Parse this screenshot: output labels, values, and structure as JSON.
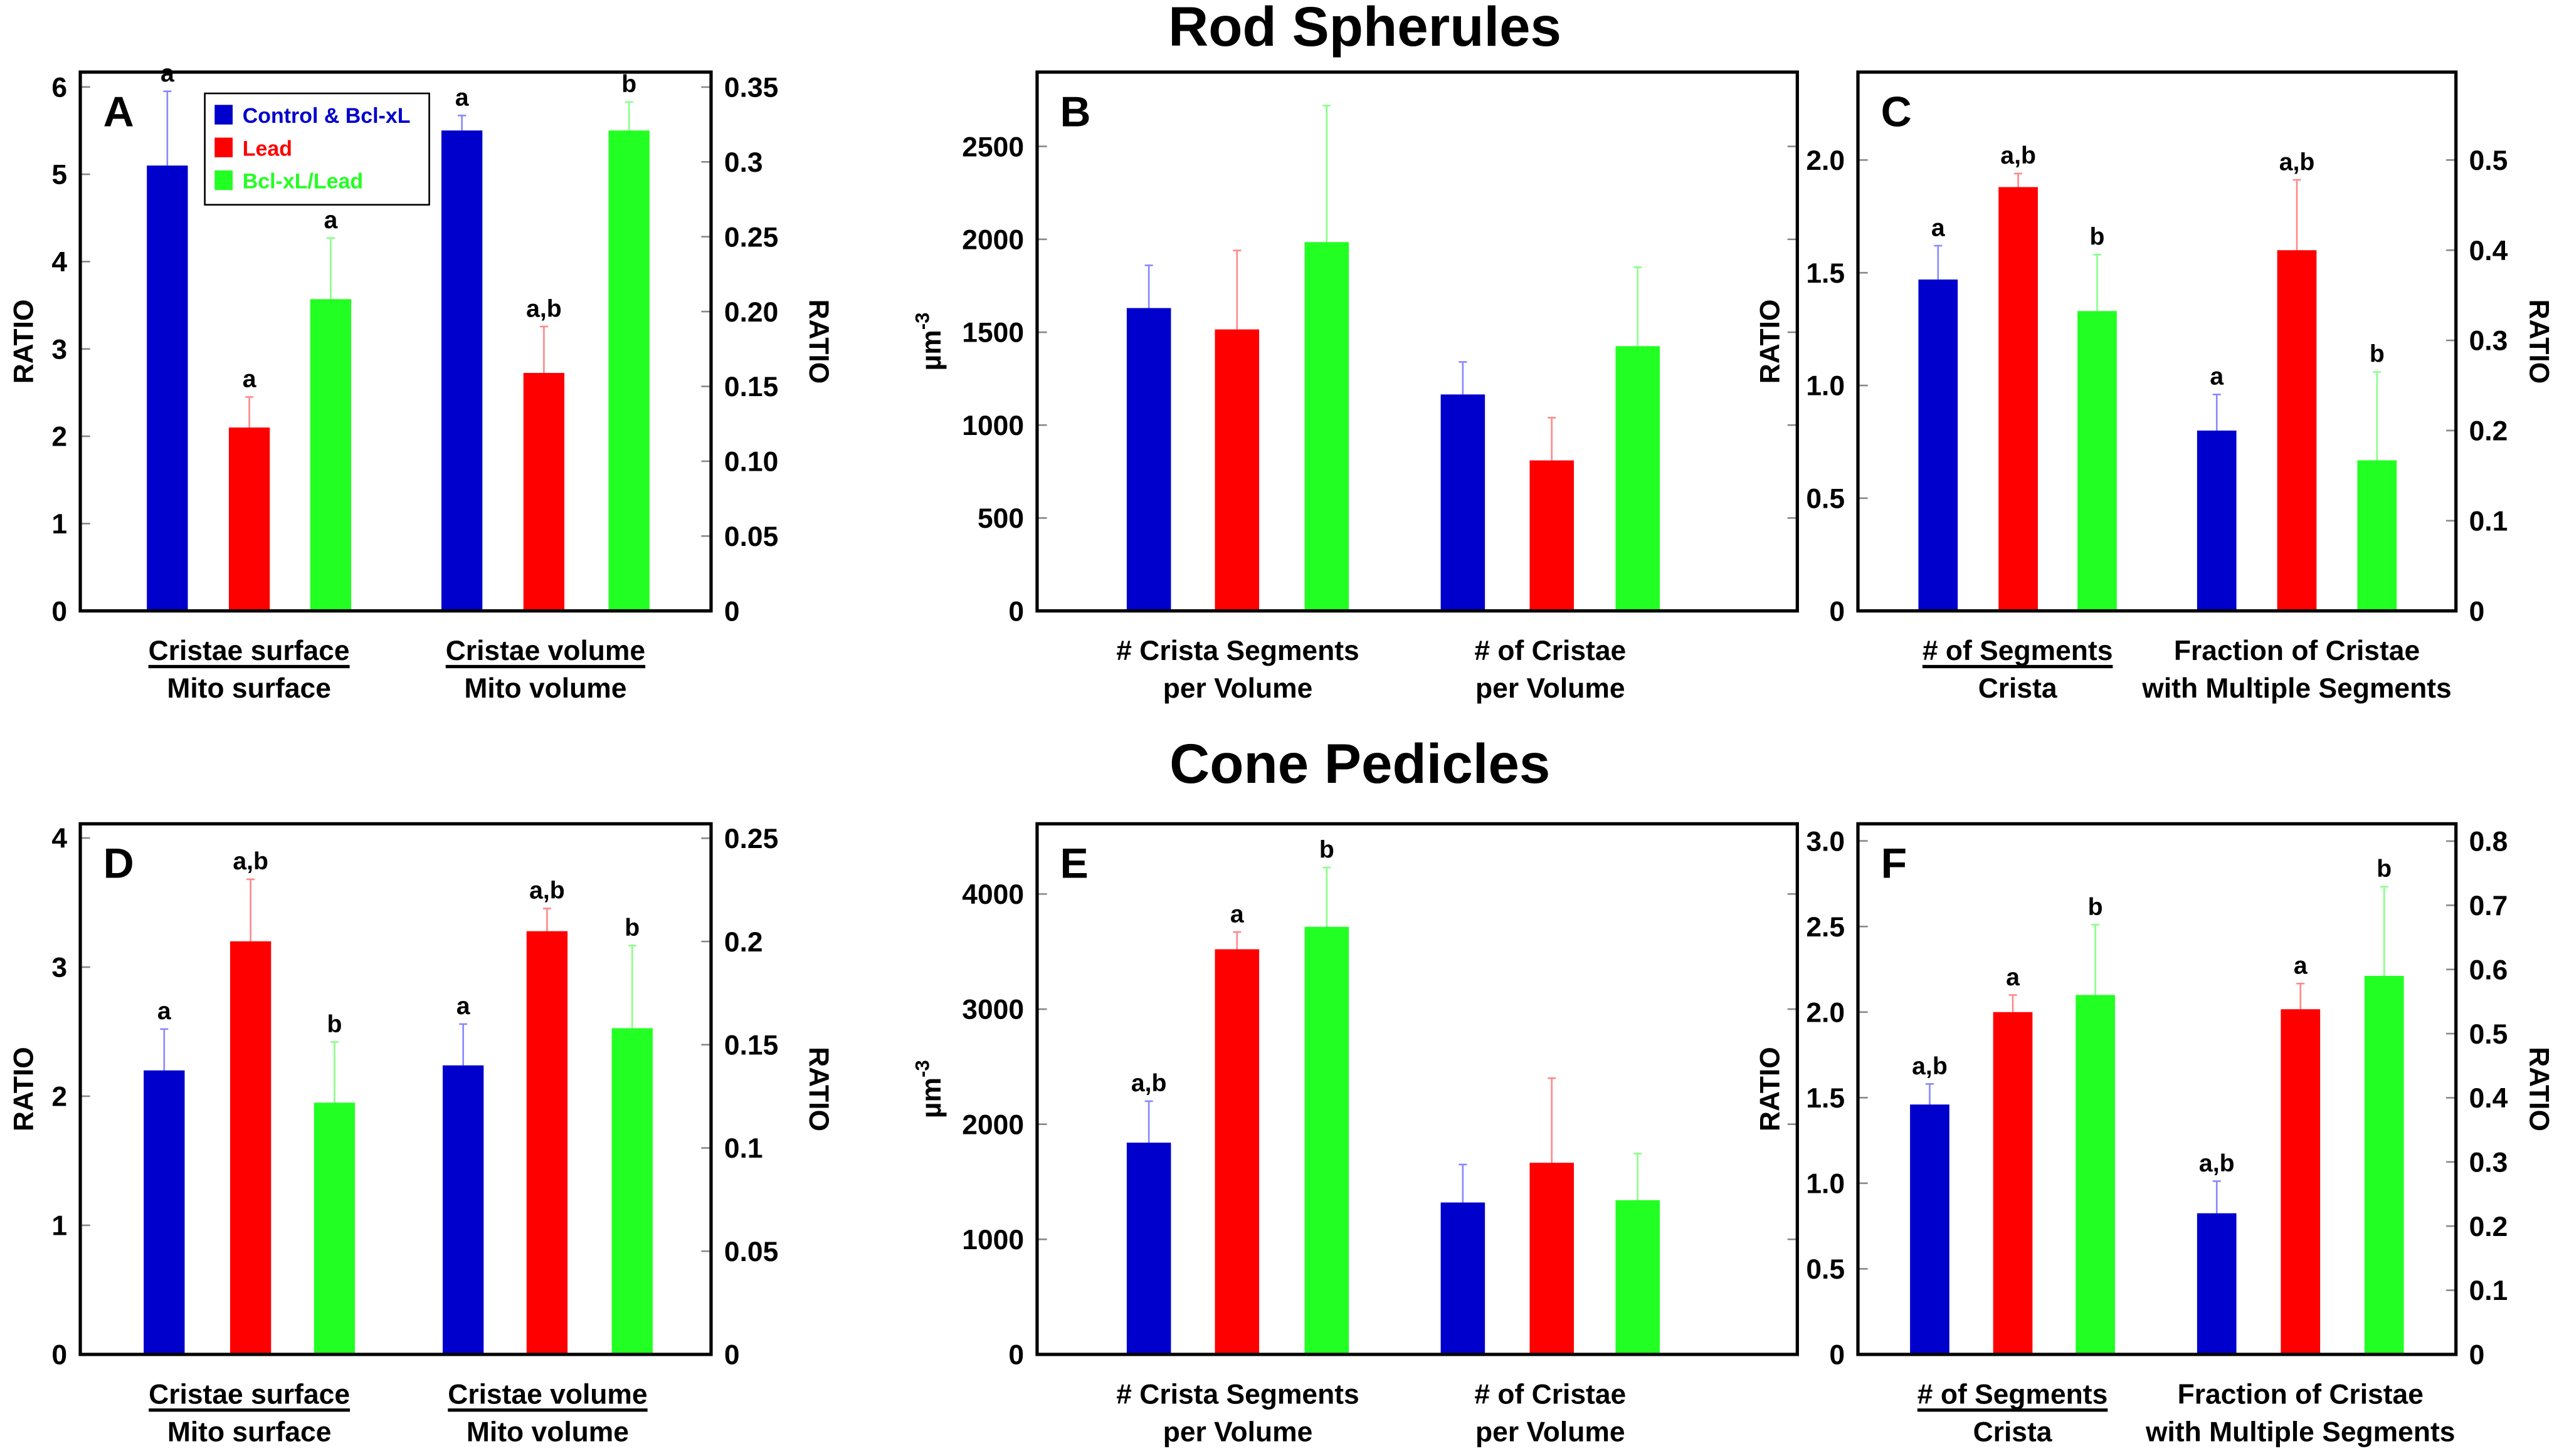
{
  "titles": [
    "Rod Spherules",
    "Cone Pedicles"
  ],
  "legend": [
    {
      "label": "Control & Bcl-xL",
      "color": "#0000cc"
    },
    {
      "label": "Lead",
      "color": "#ff0000"
    },
    {
      "label": "Bcl-xL/Lead",
      "color": "#22ff22"
    }
  ],
  "chart_data": [
    {
      "panel": "A",
      "type": "bar",
      "ylabel": "RATIO",
      "y2label": "RATIO",
      "ylim": [
        0,
        6.17
      ],
      "y2lim": [
        0,
        0.36
      ],
      "yticks": [
        {
          "v": 0,
          "t": "0"
        },
        {
          "v": 1,
          "t": "1"
        },
        {
          "v": 2,
          "t": "2"
        },
        {
          "v": 3,
          "t": "3"
        },
        {
          "v": 4,
          "t": "4"
        },
        {
          "v": 5,
          "t": "5"
        },
        {
          "v": 6,
          "t": "6"
        }
      ],
      "y2ticks": [
        {
          "v": 0,
          "t": "0"
        },
        {
          "v": 0.05,
          "t": "0.05"
        },
        {
          "v": 0.1,
          "t": "0.10"
        },
        {
          "v": 0.15,
          "t": "0.15"
        },
        {
          "v": 0.2,
          "t": "0.20"
        },
        {
          "v": 0.25,
          "t": "0.25"
        },
        {
          "v": 0.3,
          "t": "0.3"
        },
        {
          "v": 0.35,
          "t": "0.35"
        }
      ],
      "legend": "top-left",
      "groups": [
        {
          "label": [
            "Cristae surface",
            "Mito surface"
          ],
          "fraction": true,
          "axis": "left",
          "values": [
            5.1,
            2.1,
            3.57
          ],
          "errors": [
            0.85,
            0.35,
            0.7
          ],
          "letters": [
            "a",
            "a",
            "a"
          ]
        },
        {
          "label": [
            "Cristae volume",
            "Mito volume"
          ],
          "fraction": true,
          "axis": "right",
          "values": [
            0.321,
            0.159,
            0.321
          ],
          "errors": [
            0.01,
            0.031,
            0.019
          ],
          "letters": [
            "a",
            "a,b",
            "b"
          ]
        }
      ]
    },
    {
      "panel": "B",
      "type": "bar",
      "ylabel": "µm",
      "ylabel_sup": "-3",
      "y2label": "",
      "ylim": [
        0,
        2900
      ],
      "y2lim": [
        0,
        2900
      ],
      "yticks": [
        {
          "v": 0,
          "t": "0"
        },
        {
          "v": 500,
          "t": "500"
        },
        {
          "v": 1000,
          "t": "1000"
        },
        {
          "v": 1500,
          "t": "1500"
        },
        {
          "v": 2000,
          "t": "2000"
        },
        {
          "v": 2500,
          "t": "2500"
        }
      ],
      "y2ticks": [
        {
          "v": 0,
          "t": ""
        },
        {
          "v": 500,
          "t": ""
        },
        {
          "v": 1000,
          "t": ""
        },
        {
          "v": 1500,
          "t": ""
        },
        {
          "v": 2000,
          "t": ""
        },
        {
          "v": 2500,
          "t": ""
        }
      ],
      "groups": [
        {
          "label": [
            "# Crista  Segments",
            "per Volume"
          ],
          "fraction": false,
          "axis": "left",
          "values": [
            1630,
            1515,
            1985
          ],
          "errors": [
            230,
            425,
            735
          ],
          "letters": [
            "",
            "",
            ""
          ]
        },
        {
          "label": [
            "# of Cristae",
            "per Volume"
          ],
          "fraction": false,
          "axis": "left",
          "values": [
            1165,
            810,
            1425
          ],
          "errors": [
            175,
            230,
            425
          ],
          "letters": [
            "",
            "",
            ""
          ]
        }
      ]
    },
    {
      "panel": "C",
      "type": "bar",
      "ylabel": "RATIO",
      "y2label": "RATIO",
      "ylim": [
        0,
        2.39
      ],
      "y2lim": [
        0,
        0.5975
      ],
      "yticks": [
        {
          "v": 0,
          "t": "0"
        },
        {
          "v": 0.5,
          "t": "0.5"
        },
        {
          "v": 1.0,
          "t": "1.0"
        },
        {
          "v": 1.5,
          "t": "1.5"
        },
        {
          "v": 2.0,
          "t": "2.0"
        }
      ],
      "y2ticks": [
        {
          "v": 0,
          "t": "0"
        },
        {
          "v": 0.1,
          "t": "0.1"
        },
        {
          "v": 0.2,
          "t": "0.2"
        },
        {
          "v": 0.3,
          "t": "0.3"
        },
        {
          "v": 0.4,
          "t": "0.4"
        },
        {
          "v": 0.5,
          "t": "0.5"
        }
      ],
      "groups": [
        {
          "label": [
            "# of Segments",
            "Crista"
          ],
          "fraction": true,
          "axis": "left",
          "values": [
            1.47,
            1.88,
            1.33
          ],
          "errors": [
            0.15,
            0.06,
            0.25
          ],
          "letters": [
            "a",
            "a,b",
            "b"
          ]
        },
        {
          "label": [
            "Fraction of Cristae",
            "with Multiple Segments"
          ],
          "fraction": false,
          "axis": "right",
          "values": [
            0.2,
            0.4,
            0.167
          ],
          "errors": [
            0.04,
            0.078,
            0.098
          ],
          "letters": [
            "a",
            "a,b",
            "b"
          ]
        }
      ]
    },
    {
      "panel": "D",
      "type": "bar",
      "ylabel": "RATIO",
      "y2label": "RATIO",
      "ylim": [
        0,
        4.11
      ],
      "y2lim": [
        0,
        0.257
      ],
      "yticks": [
        {
          "v": 0,
          "t": "0"
        },
        {
          "v": 1,
          "t": "1"
        },
        {
          "v": 2,
          "t": "2"
        },
        {
          "v": 3,
          "t": "3"
        },
        {
          "v": 4,
          "t": "4"
        }
      ],
      "y2ticks": [
        {
          "v": 0,
          "t": "0"
        },
        {
          "v": 0.05,
          "t": "0.05"
        },
        {
          "v": 0.1,
          "t": "0.1"
        },
        {
          "v": 0.15,
          "t": "0.15"
        },
        {
          "v": 0.2,
          "t": "0.2"
        },
        {
          "v": 0.25,
          "t": "0.25"
        }
      ],
      "groups": [
        {
          "label": [
            "Cristae surface",
            "Mito surface"
          ],
          "fraction": true,
          "axis": "left",
          "values": [
            2.2,
            3.2,
            1.95
          ],
          "errors": [
            0.32,
            0.48,
            0.47
          ],
          "letters": [
            "a",
            "a,b",
            "b"
          ]
        },
        {
          "label": [
            "Cristae volume",
            "Mito volume"
          ],
          "fraction": true,
          "axis": "right",
          "values": [
            0.14,
            0.205,
            0.158
          ],
          "errors": [
            0.02,
            0.011,
            0.04
          ],
          "letters": [
            "a",
            "a,b",
            "b"
          ]
        }
      ]
    },
    {
      "panel": "E",
      "type": "bar",
      "ylabel": "µm",
      "ylabel_sup": "-3",
      "y2label": "",
      "ylim": [
        0,
        4610
      ],
      "y2lim": [
        0,
        4610
      ],
      "yticks": [
        {
          "v": 0,
          "t": "0"
        },
        {
          "v": 1000,
          "t": "1000"
        },
        {
          "v": 2000,
          "t": "2000"
        },
        {
          "v": 3000,
          "t": "3000"
        },
        {
          "v": 4000,
          "t": "4000"
        }
      ],
      "y2ticks": [
        {
          "v": 0,
          "t": ""
        },
        {
          "v": 1000,
          "t": ""
        },
        {
          "v": 2000,
          "t": ""
        },
        {
          "v": 3000,
          "t": ""
        },
        {
          "v": 4000,
          "t": ""
        }
      ],
      "groups": [
        {
          "label": [
            "# Crista  Segments",
            "per Volume"
          ],
          "fraction": false,
          "axis": "left",
          "values": [
            1840,
            3520,
            3715
          ],
          "errors": [
            360,
            150,
            515
          ],
          "letters": [
            "a,b",
            "a",
            "b"
          ]
        },
        {
          "label": [
            "# of Cristae",
            "per Volume"
          ],
          "fraction": false,
          "axis": "left",
          "values": [
            1320,
            1665,
            1340
          ],
          "errors": [
            330,
            735,
            405
          ],
          "letters": [
            "",
            "",
            ""
          ]
        }
      ]
    },
    {
      "panel": "F",
      "type": "bar",
      "ylabel": "RATIO",
      "y2label": "RATIO",
      "ylim": [
        0,
        3.1
      ],
      "y2lim": [
        0,
        0.827
      ],
      "yticks": [
        {
          "v": 0,
          "t": "0"
        },
        {
          "v": 0.5,
          "t": "0.5"
        },
        {
          "v": 1.0,
          "t": "1.0"
        },
        {
          "v": 1.5,
          "t": "1.5"
        },
        {
          "v": 2.0,
          "t": "2.0"
        },
        {
          "v": 2.5,
          "t": "2.5"
        },
        {
          "v": 3.0,
          "t": "3.0"
        }
      ],
      "y2ticks": [
        {
          "v": 0,
          "t": "0"
        },
        {
          "v": 0.1,
          "t": "0.1"
        },
        {
          "v": 0.2,
          "t": "0.2"
        },
        {
          "v": 0.3,
          "t": "0.3"
        },
        {
          "v": 0.4,
          "t": "0.4"
        },
        {
          "v": 0.5,
          "t": "0.5"
        },
        {
          "v": 0.6,
          "t": "0.6"
        },
        {
          "v": 0.7,
          "t": "0.7"
        },
        {
          "v": 0.8,
          "t": "0.8"
        }
      ],
      "groups": [
        {
          "label": [
            "# of Segments",
            "Crista"
          ],
          "fraction": true,
          "axis": "left",
          "values": [
            1.46,
            2.0,
            2.1
          ],
          "errors": [
            0.12,
            0.1,
            0.41
          ],
          "letters": [
            "a,b",
            "a",
            "b"
          ]
        },
        {
          "label": [
            "Fraction of Cristae",
            "with Multiple Segments"
          ],
          "fraction": false,
          "axis": "right",
          "values": [
            0.22,
            0.538,
            0.59
          ],
          "errors": [
            0.05,
            0.04,
            0.139
          ],
          "letters": [
            "a,b",
            "a",
            "b"
          ]
        }
      ]
    }
  ]
}
